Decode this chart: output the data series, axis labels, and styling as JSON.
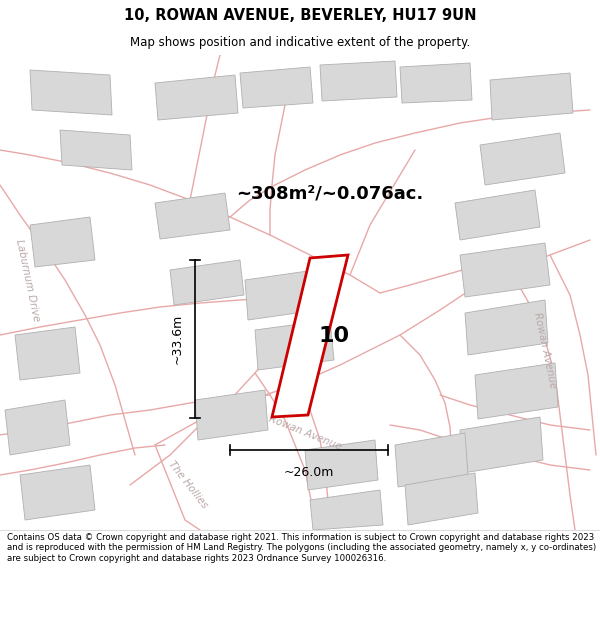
{
  "title_line1": "10, ROWAN AVENUE, BEVERLEY, HU17 9UN",
  "title_line2": "Map shows position and indicative extent of the property.",
  "area_label": "~308m²/~0.076ac.",
  "dim_height": "~33.6m",
  "dim_width": "~26.0m",
  "property_number": "10",
  "copyright_text": "Contains OS data © Crown copyright and database right 2021. This information is subject to Crown copyright and database rights 2023 and is reproduced with the permission of HM Land Registry. The polygons (including the associated geometry, namely x, y co-ordinates) are subject to Crown copyright and database rights 2023 Ordnance Survey 100026316.",
  "map_bg": "#f2f0f0",
  "building_fc": "#d8d8d8",
  "building_ec": "#b0b0b0",
  "road_color": "#e8a8a8",
  "street_label_color": "#bba8a8",
  "prop_color": "#cc0000"
}
